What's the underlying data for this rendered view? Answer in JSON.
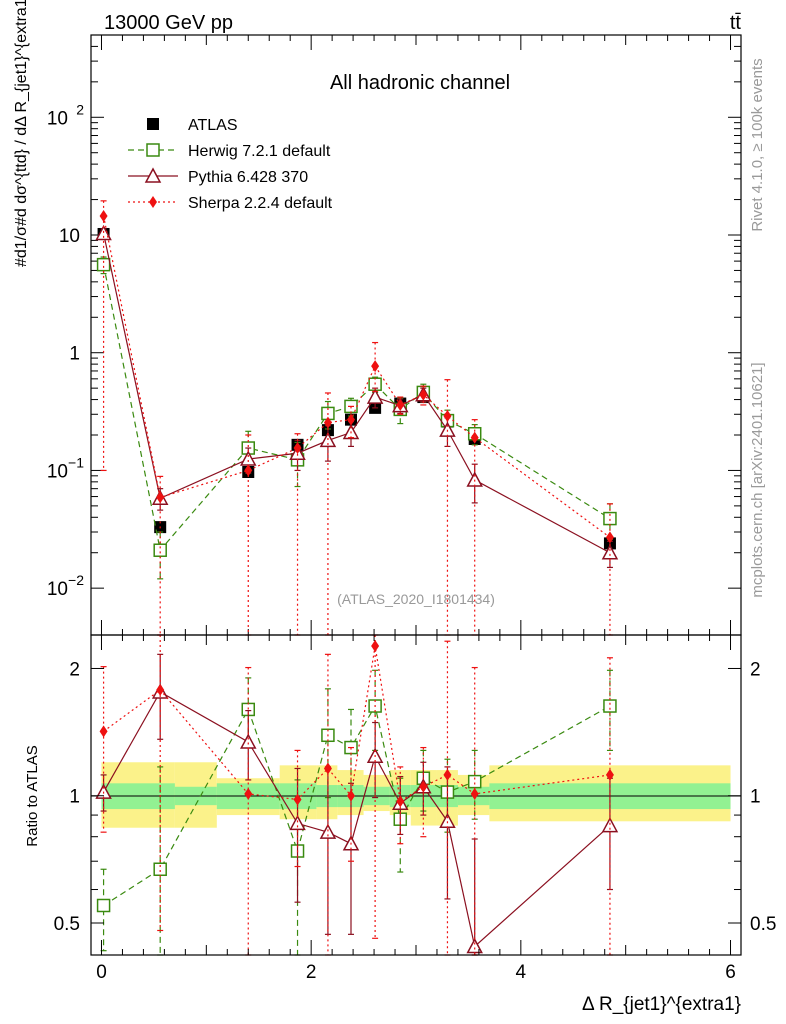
{
  "header": {
    "energy": "13000 GeV pp",
    "process": "tt̄"
  },
  "side_notes": {
    "rivet": "Rivet 4.1.0, ≥ 100k events",
    "source": "mcplots.cern.ch [arXiv:2401.10621]"
  },
  "chart_data": {
    "type": "line",
    "title": "All hadronic channel",
    "analysis_label": "(ATLAS_2020_I1801434)",
    "xlabel": "Δ R_{jet1}^{extra1}",
    "ylabel": "#d1/σ#d dσ^{ttd} / dΔ R_{jet1}^{extra1}",
    "ratio_ylabel": "Ratio to ATLAS",
    "xlim": [
      -0.1,
      6.1
    ],
    "ylim": [
      0.004,
      500
    ],
    "ratio_ylim": [
      0.42,
      2.4
    ],
    "x_ticks": [
      "0",
      "2",
      "4",
      "6"
    ],
    "y_ticks": [
      "10^-2",
      "10^-1",
      "1",
      "10",
      "10^2"
    ],
    "ratio_ticks": [
      "0.5",
      "1",
      "2"
    ],
    "bin_edges": [
      0,
      0.7,
      1.1,
      1.7,
      2.05,
      2.25,
      2.5,
      2.75,
      2.95,
      3.2,
      3.4,
      3.7,
      6.0
    ],
    "band_inner_up": [
      1.07,
      1.05,
      1.07,
      1.07,
      1.06,
      1.06,
      1.05,
      1.06,
      1.06,
      1.06,
      1.05,
      1.07
    ],
    "band_inner_down": [
      0.93,
      0.95,
      0.93,
      0.93,
      0.94,
      0.94,
      0.95,
      0.94,
      0.94,
      0.94,
      0.95,
      0.93
    ],
    "band_outer_up": [
      1.2,
      1.2,
      1.1,
      1.18,
      1.18,
      1.15,
      1.12,
      1.15,
      1.15,
      1.15,
      1.12,
      1.18
    ],
    "band_outer_down": [
      0.84,
      0.84,
      0.9,
      0.88,
      0.88,
      0.9,
      0.92,
      0.9,
      0.85,
      0.85,
      0.9,
      0.87
    ],
    "series": [
      {
        "name": "ATLAS",
        "color": "#000000",
        "marker": "filled-square",
        "line": "none",
        "x": [
          0.02,
          0.56,
          1.4,
          1.87,
          2.16,
          2.38,
          2.61,
          2.85,
          3.07,
          3.3,
          3.56,
          4.85
        ],
        "values": [
          10.2,
          0.033,
          0.097,
          0.165,
          0.22,
          0.27,
          0.34,
          0.37,
          0.42,
          0.26,
          0.185,
          0.024
        ],
        "err_up": [
          0.5,
          0.003,
          0.008,
          0.015,
          0.02,
          0.02,
          0.025,
          0.025,
          0.03,
          0.02,
          0.015,
          0.003
        ],
        "err_down": [
          0.5,
          0.003,
          0.008,
          0.015,
          0.02,
          0.02,
          0.025,
          0.025,
          0.03,
          0.02,
          0.015,
          0.003
        ],
        "ratio": [
          1,
          1,
          1,
          1,
          1,
          1,
          1,
          1,
          1,
          1,
          1,
          1
        ]
      },
      {
        "name": "Herwig 7.2.1 default",
        "color": "#3a8a10",
        "marker": "open-square",
        "line": "dashed",
        "x": [
          0.02,
          0.56,
          1.4,
          1.87,
          2.16,
          2.38,
          2.61,
          2.85,
          3.07,
          3.3,
          3.56,
          4.85
        ],
        "values": [
          5.6,
          0.021,
          0.155,
          0.123,
          0.305,
          0.35,
          0.54,
          0.33,
          0.46,
          0.265,
          0.205,
          0.039
        ],
        "err_up": [
          0.9,
          0.009,
          0.06,
          0.05,
          0.08,
          0.06,
          0.08,
          0.08,
          0.08,
          0.06,
          0.04,
          0.013
        ],
        "err_down": [
          0.9,
          0.009,
          0.06,
          0.05,
          0.08,
          0.06,
          0.08,
          0.08,
          0.08,
          0.06,
          0.04,
          0.013
        ],
        "ratio": [
          0.55,
          0.67,
          1.6,
          0.74,
          1.39,
          1.3,
          1.63,
          0.88,
          1.1,
          1.02,
          1.08,
          1.63
        ],
        "ratio_err_up": [
          0.12,
          0.5,
          0.3,
          0.35,
          0.4,
          0.3,
          0.35,
          0.22,
          0.18,
          0.2,
          0.2,
          0.35
        ],
        "ratio_err_down": [
          0.12,
          0.4,
          0.3,
          0.33,
          0.4,
          0.3,
          0.35,
          0.22,
          0.18,
          0.2,
          0.2,
          0.35
        ]
      },
      {
        "name": "Pythia 6.428 370",
        "color": "#8b1020",
        "marker": "open-triangle",
        "line": "solid",
        "x": [
          0.02,
          0.56,
          1.4,
          1.87,
          2.16,
          2.38,
          2.61,
          2.85,
          3.07,
          3.3,
          3.56,
          4.85
        ],
        "values": [
          10.3,
          0.058,
          0.125,
          0.14,
          0.18,
          0.21,
          0.42,
          0.355,
          0.44,
          0.22,
          0.083,
          0.02
        ],
        "err_up": [
          1.0,
          0.012,
          0.03,
          0.04,
          0.06,
          0.05,
          0.08,
          0.05,
          0.06,
          0.06,
          0.03,
          0.005
        ],
        "err_down": [
          1.0,
          0.012,
          0.03,
          0.04,
          0.06,
          0.05,
          0.08,
          0.05,
          0.06,
          0.06,
          0.03,
          0.005
        ],
        "ratio": [
          1.02,
          1.76,
          1.34,
          0.86,
          0.82,
          0.77,
          1.24,
          0.96,
          1.05,
          0.87,
          0.44,
          0.85
        ],
        "ratio_err_up": [
          0.1,
          0.4,
          0.25,
          0.3,
          0.35,
          0.3,
          0.25,
          0.15,
          0.15,
          0.3,
          0.35,
          0.25
        ],
        "ratio_err_down": [
          0.1,
          0.4,
          0.25,
          0.3,
          0.35,
          0.3,
          0.25,
          0.15,
          0.15,
          0.3,
          0.25,
          0.25
        ]
      },
      {
        "name": "Sherpa 2.2.4 default",
        "color": "#ee1111",
        "marker": "filled-diamond",
        "line": "dotted",
        "x": [
          0.02,
          0.56,
          1.4,
          1.87,
          2.16,
          2.38,
          2.61,
          2.85,
          3.07,
          3.3,
          3.56,
          4.85
        ],
        "values": [
          14.5,
          0.059,
          0.1,
          0.155,
          0.255,
          0.27,
          0.77,
          0.36,
          0.44,
          0.29,
          0.19,
          0.027
        ],
        "err_up": [
          5.0,
          0.03,
          0.1,
          0.05,
          0.2,
          0.08,
          0.45,
          0.06,
          0.08,
          0.3,
          0.08,
          0.025
        ],
        "err_down": [
          14.4,
          0.058,
          0.099,
          0.154,
          0.254,
          0.08,
          0.3,
          0.06,
          0.08,
          0.289,
          0.189,
          0.026
        ],
        "ratio": [
          1.42,
          1.78,
          1.01,
          0.98,
          1.16,
          1.0,
          2.26,
          0.97,
          1.05,
          1.12,
          1.01,
          1.12
        ],
        "ratio_err_up": [
          0.6,
          1.0,
          1.0,
          0.3,
          1.0,
          0.3,
          0.6,
          0.2,
          0.25,
          1.2,
          1.0,
          1.0
        ],
        "ratio_err_down": [
          0.6,
          1.3,
          0.6,
          0.3,
          0.8,
          0.3,
          1.8,
          0.2,
          0.25,
          0.7,
          0.6,
          0.7
        ]
      }
    ]
  }
}
